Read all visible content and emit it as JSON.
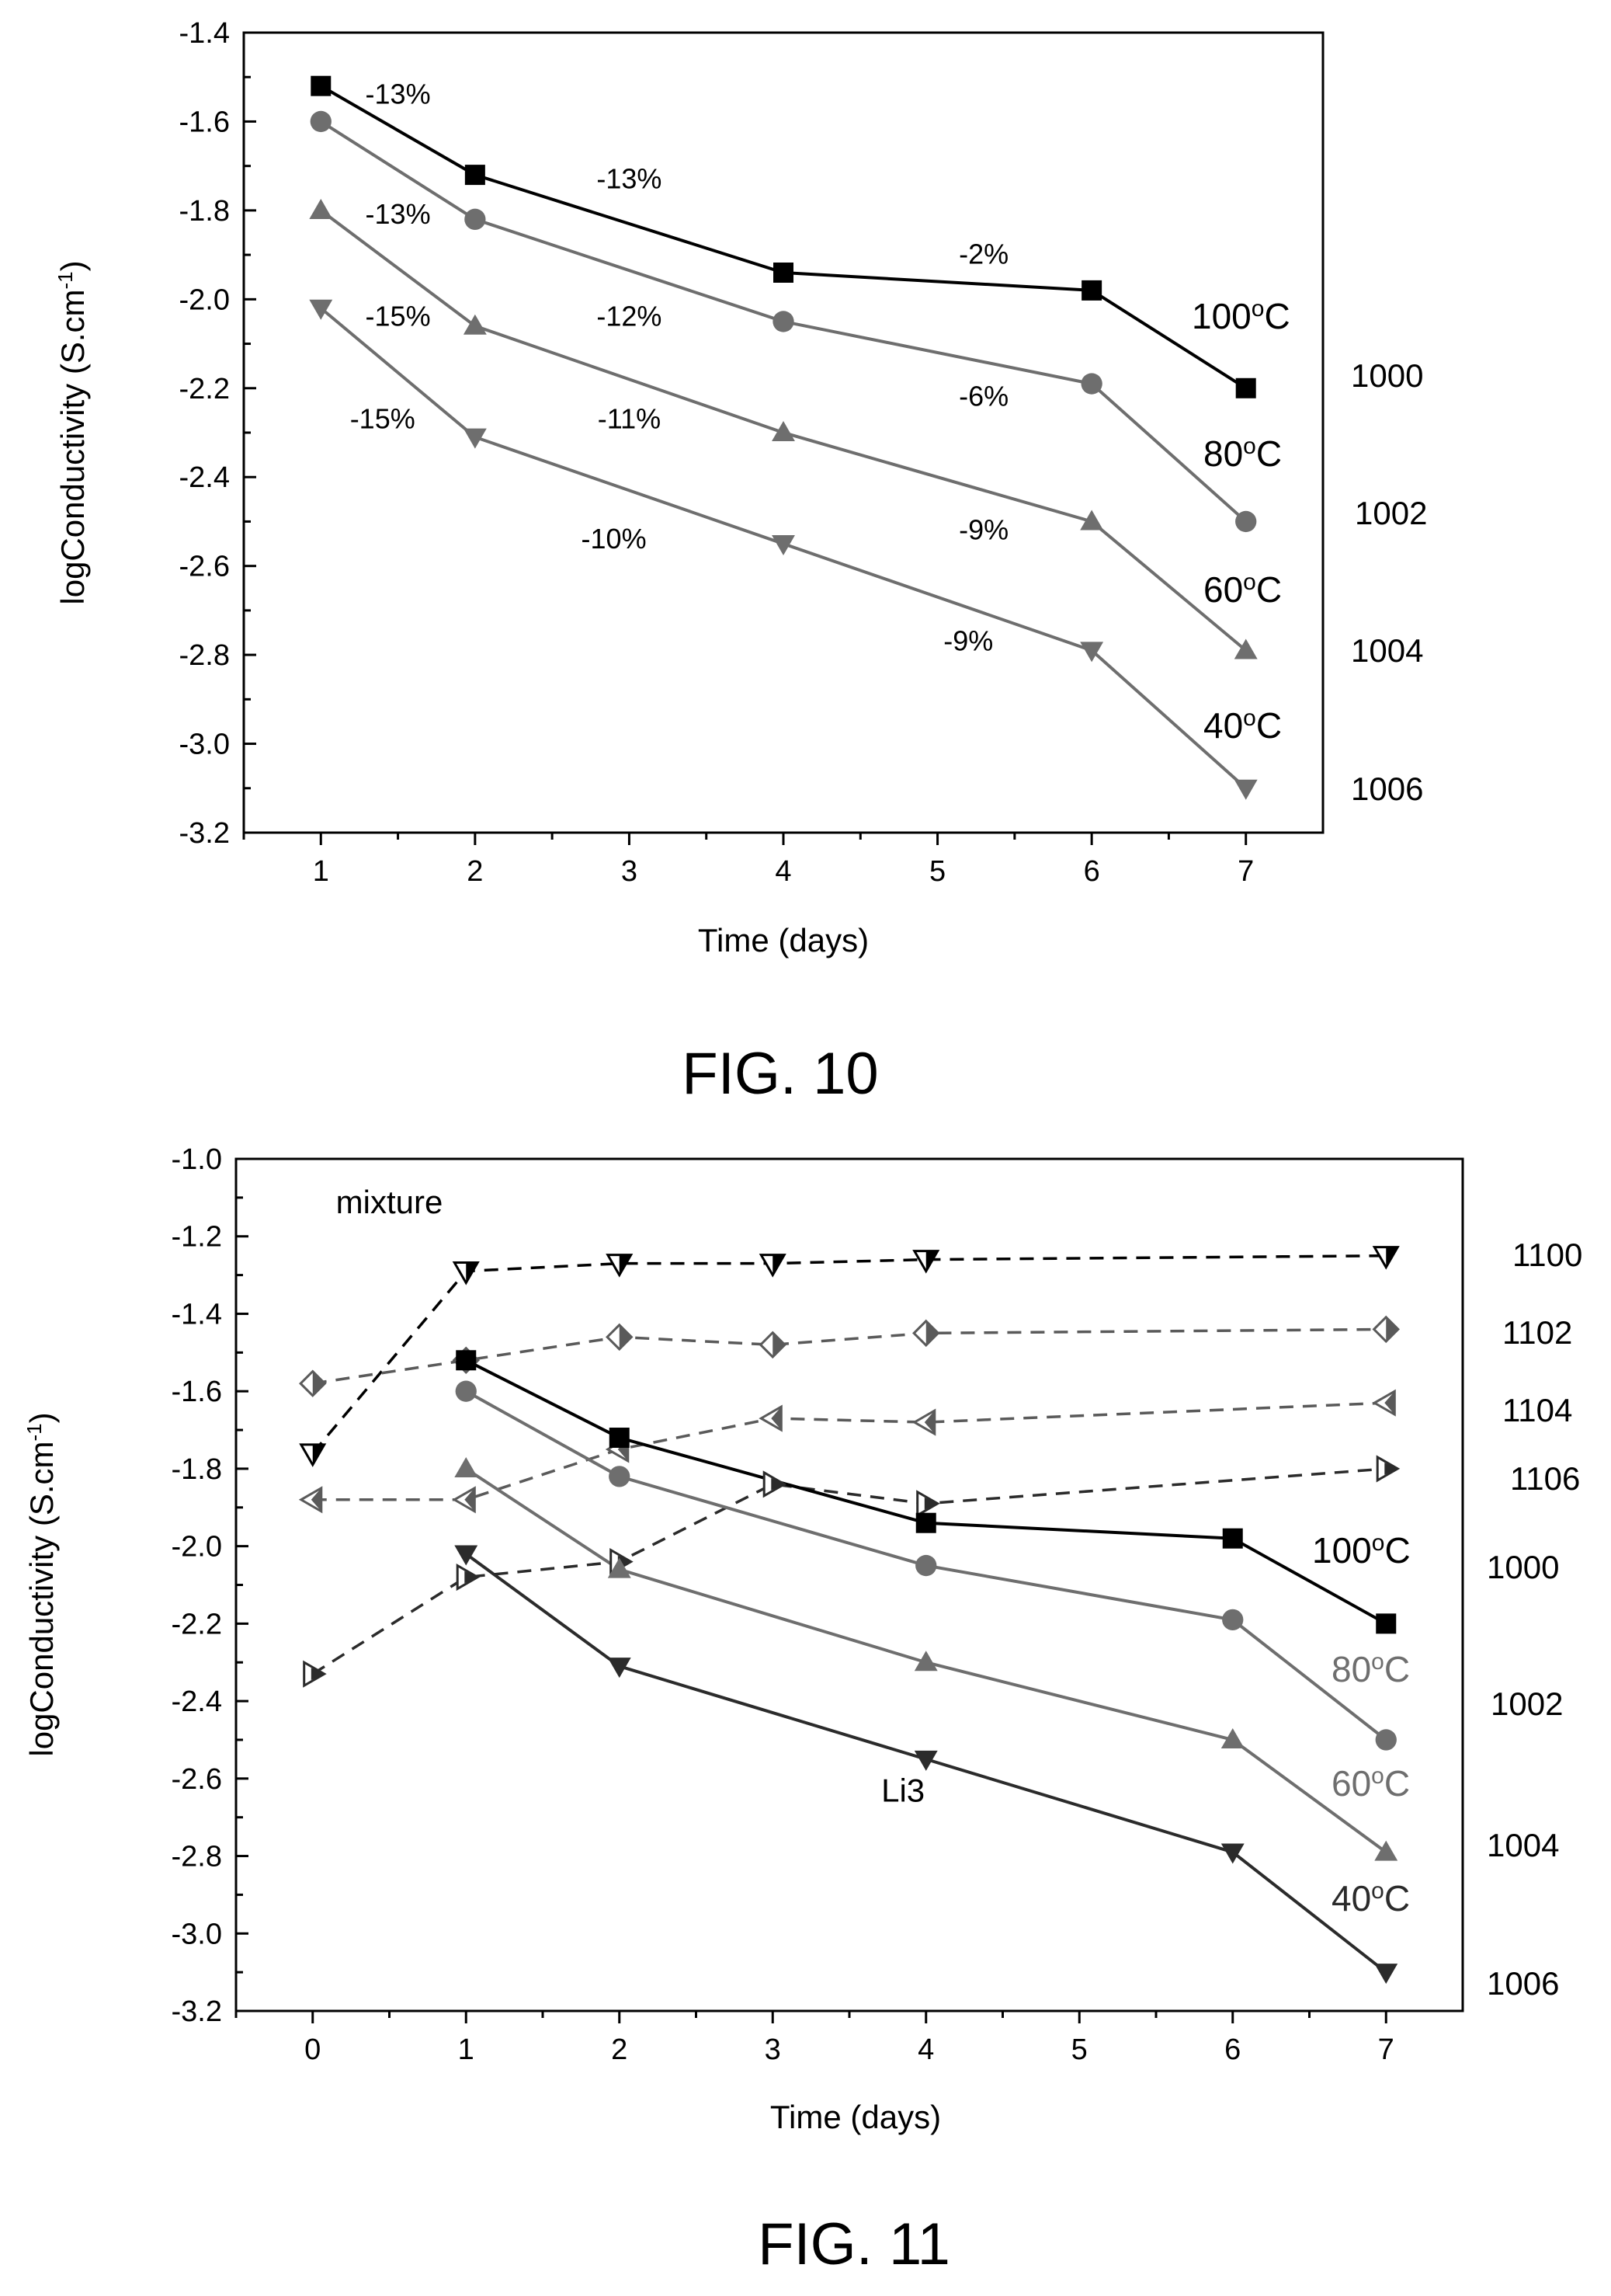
{
  "colors": {
    "black": "#000000",
    "dark": "#2b2b2b",
    "mid": "#5a5a5a",
    "gray": "#6e6e6e",
    "light": "#8a8a8a"
  },
  "fig10": {
    "caption": "FIG. 10",
    "chart_data": {
      "type": "line",
      "xlabel": "Time (days)",
      "ylabel": "logConductivity (S.cm-1)",
      "xlim": [
        0.5,
        7.5
      ],
      "ylim": [
        -3.2,
        -1.4
      ],
      "xticks": [
        1,
        2,
        3,
        4,
        5,
        6,
        7
      ],
      "yticks": [
        -1.4,
        -1.6,
        -1.8,
        -2.0,
        -2.2,
        -2.4,
        -2.6,
        -2.8,
        -3.0,
        -3.2
      ],
      "xtick_labels": [
        "1",
        "2",
        "3",
        "4",
        "5",
        "6",
        "7"
      ],
      "ytick_labels": [
        "-1.4",
        "-1.6",
        "-1.8",
        "-2.0",
        "-2.2",
        "-2.4",
        "-2.6",
        "-2.8",
        "-3.0",
        "-3.2"
      ],
      "x": [
        1,
        2,
        4,
        6,
        7
      ],
      "series": [
        {
          "name": "100°C",
          "ref": "1000",
          "marker": "square",
          "color": "#000000",
          "values": [
            -1.52,
            -1.72,
            -1.94,
            -1.98,
            -2.2
          ]
        },
        {
          "name": "80°C",
          "ref": "1002",
          "marker": "circle",
          "color": "#6e6e6e",
          "values": [
            -1.6,
            -1.82,
            -2.05,
            -2.19,
            -2.5
          ]
        },
        {
          "name": "60°C",
          "ref": "1004",
          "marker": "triangle-up",
          "color": "#6e6e6e",
          "values": [
            -1.8,
            -2.06,
            -2.3,
            -2.5,
            -2.79
          ]
        },
        {
          "name": "40°C",
          "ref": "1006",
          "marker": "triangle-down",
          "color": "#6e6e6e",
          "values": [
            -2.02,
            -2.31,
            -2.55,
            -2.79,
            -3.1
          ]
        }
      ],
      "annotations": [
        {
          "text": "-13%",
          "x": 1.5,
          "y": -1.56
        },
        {
          "text": "-13%",
          "x": 3.0,
          "y": -1.75
        },
        {
          "text": "-2%",
          "x": 5.3,
          "y": -1.92
        },
        {
          "text": "-13%",
          "x": 1.5,
          "y": -1.83
        },
        {
          "text": "-12%",
          "x": 3.0,
          "y": -2.06
        },
        {
          "text": "-6%",
          "x": 5.3,
          "y": -2.24
        },
        {
          "text": "-15%",
          "x": 1.5,
          "y": -2.06
        },
        {
          "text": "-11%",
          "x": 3.0,
          "y": -2.29
        },
        {
          "text": "-9%",
          "x": 5.3,
          "y": -2.54
        },
        {
          "text": "-15%",
          "x": 1.4,
          "y": -2.29
        },
        {
          "text": "-10%",
          "x": 2.9,
          "y": -2.56
        },
        {
          "text": "-9%",
          "x": 5.2,
          "y": -2.79
        }
      ]
    }
  },
  "fig11": {
    "caption": "FIG. 11",
    "chart_data": {
      "type": "line",
      "xlabel": "Time (days)",
      "ylabel": "logConductivity (S.cm-1)",
      "xlim": [
        -0.5,
        7.5
      ],
      "ylim": [
        -3.2,
        -1.0
      ],
      "xticks": [
        0,
        1,
        2,
        3,
        4,
        5,
        6,
        7
      ],
      "yticks": [
        -1.0,
        -1.2,
        -1.4,
        -1.6,
        -1.8,
        -2.0,
        -2.2,
        -2.4,
        -2.6,
        -2.8,
        -3.0,
        -3.2
      ],
      "xtick_labels": [
        "0",
        "1",
        "2",
        "3",
        "4",
        "5",
        "6",
        "7"
      ],
      "ytick_labels": [
        "-1.0",
        "-1.2",
        "-1.4",
        "-1.6",
        "-1.8",
        "-2.0",
        "-2.2",
        "-2.4",
        "-2.6",
        "-2.8",
        "-3.0",
        "-3.2"
      ],
      "series": [
        {
          "ref": "1100",
          "marker": "half-triangle-down",
          "dashed": true,
          "color": "#000000",
          "x": [
            0,
            1,
            2,
            3,
            4,
            7
          ],
          "values": [
            -1.76,
            -1.29,
            -1.27,
            -1.27,
            -1.26,
            -1.25
          ]
        },
        {
          "ref": "1102",
          "marker": "half-diamond",
          "dashed": true,
          "color": "#5a5a5a",
          "x": [
            0,
            1,
            2,
            3,
            4,
            7
          ],
          "values": [
            -1.58,
            -1.52,
            -1.46,
            -1.48,
            -1.45,
            -1.44
          ]
        },
        {
          "ref": "1104",
          "marker": "half-triangle-left",
          "dashed": true,
          "color": "#5a5a5a",
          "x": [
            0,
            1,
            2,
            3,
            4,
            7
          ],
          "values": [
            -1.88,
            -1.88,
            -1.75,
            -1.67,
            -1.68,
            -1.63
          ]
        },
        {
          "ref": "1106",
          "marker": "half-triangle-right",
          "dashed": true,
          "color": "#2b2b2b",
          "x": [
            0,
            1,
            2,
            3,
            4,
            7
          ],
          "values": [
            -2.33,
            -2.08,
            -2.04,
            -1.84,
            -1.89,
            -1.8
          ]
        },
        {
          "name": "100°C",
          "ref": "1000",
          "marker": "square",
          "dashed": false,
          "color": "#000000",
          "x": [
            1,
            2,
            4,
            6,
            7
          ],
          "values": [
            -1.52,
            -1.72,
            -1.94,
            -1.98,
            -2.2
          ]
        },
        {
          "name": "80°C",
          "ref": "1002",
          "marker": "circle",
          "dashed": false,
          "color": "#6e6e6e",
          "x": [
            1,
            2,
            4,
            6,
            7
          ],
          "values": [
            -1.6,
            -1.82,
            -2.05,
            -2.19,
            -2.5
          ]
        },
        {
          "name": "60°C",
          "ref": "1004",
          "marker": "triangle-up",
          "dashed": false,
          "color": "#6e6e6e",
          "x": [
            1,
            2,
            4,
            6,
            7
          ],
          "values": [
            -1.8,
            -2.06,
            -2.3,
            -2.5,
            -2.79
          ]
        },
        {
          "name": "40°C",
          "ref": "1006",
          "marker": "triangle-down",
          "dashed": false,
          "color": "#2b2b2b",
          "x": [
            1,
            2,
            4,
            6,
            7
          ],
          "values": [
            -2.02,
            -2.31,
            -2.55,
            -2.79,
            -3.1
          ]
        }
      ],
      "annotations": [
        {
          "text": "mixture",
          "x": 0.5,
          "y": -1.14
        },
        {
          "text": "Li3",
          "x": 3.85,
          "y": -2.66
        }
      ]
    }
  }
}
